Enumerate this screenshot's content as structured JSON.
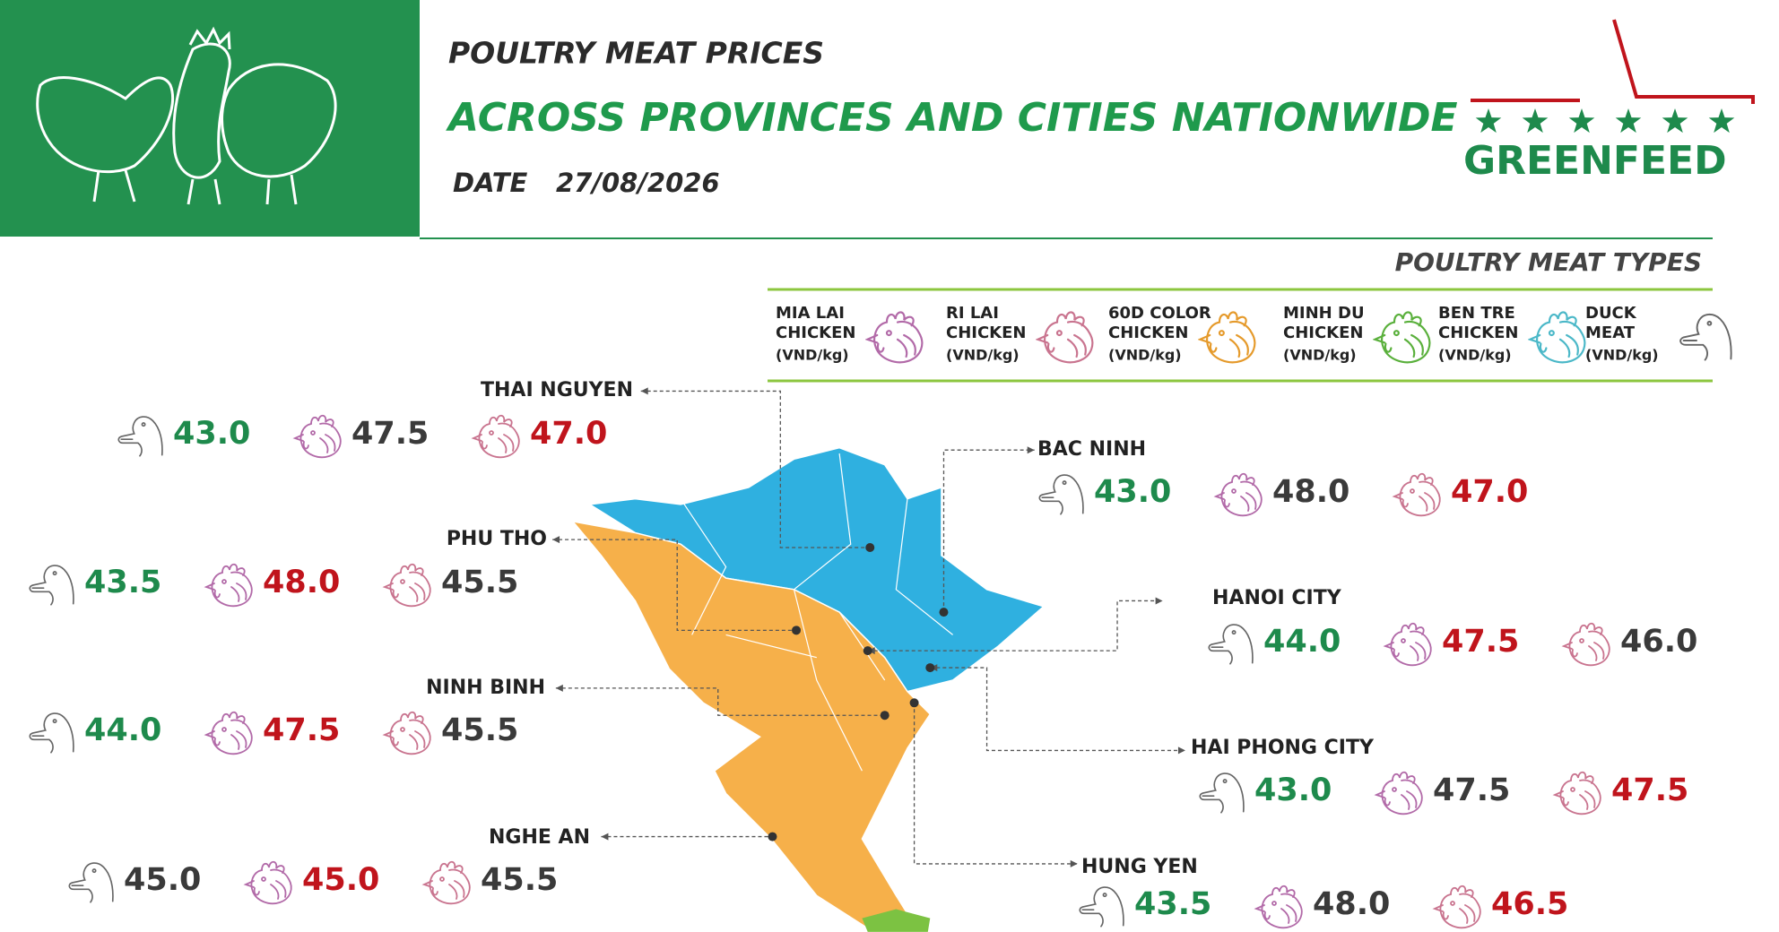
{
  "header": {
    "title": "POULTRY MEAT PRICES",
    "subtitle": "ACROSS PROVINCES AND CITIES NATIONWIDE",
    "date_label": "DATE",
    "date": "27/08/2026",
    "brand": "GREENFEED"
  },
  "legend": {
    "title": "POULTRY MEAT TYPES",
    "items": [
      {
        "type": "mia_lai",
        "color": "#b26aa8",
        "name_lines": [
          "MIA LAI",
          "CHICKEN"
        ],
        "unit": "(VND/kg)"
      },
      {
        "type": "ri_lai",
        "color": "#c9748f",
        "name_lines": [
          "RI LAI",
          "CHICKEN"
        ],
        "unit": "(VND/kg)"
      },
      {
        "type": "60d_color",
        "color": "#e59a2b",
        "name_lines": [
          "60D COLOR",
          "CHICKEN"
        ],
        "unit": "(VND/kg)"
      },
      {
        "type": "minh_du",
        "color": "#5ab03c",
        "name_lines": [
          "MINH DU",
          "CHICKEN"
        ],
        "unit": "(VND/kg)"
      },
      {
        "type": "ben_tre",
        "color": "#4bb8c8",
        "name_lines": [
          "BEN TRE",
          "CHICKEN"
        ],
        "unit": "(VND/kg)"
      },
      {
        "type": "duck",
        "color": "#666666",
        "name_lines": [
          "DUCK",
          "MEAT"
        ],
        "unit": "(VND/kg)"
      }
    ]
  },
  "provinces": [
    {
      "name": "THAI NGUYEN",
      "prices": [
        {
          "type": "duck",
          "price": "43.0",
          "color": "#1e8a4c"
        },
        {
          "type": "mia_lai",
          "price": "47.5",
          "color": "#3a3a3a"
        },
        {
          "type": "ri_lai",
          "price": "47.0",
          "color": "#c0141c"
        }
      ]
    },
    {
      "name": "PHU THO",
      "prices": [
        {
          "type": "duck",
          "price": "43.5",
          "color": "#1e8a4c"
        },
        {
          "type": "mia_lai",
          "price": "48.0",
          "color": "#c0141c"
        },
        {
          "type": "ri_lai",
          "price": "45.5",
          "color": "#3a3a3a"
        }
      ]
    },
    {
      "name": "NINH BINH",
      "prices": [
        {
          "type": "duck",
          "price": "44.0",
          "color": "#1e8a4c"
        },
        {
          "type": "mia_lai",
          "price": "47.5",
          "color": "#c0141c"
        },
        {
          "type": "ri_lai",
          "price": "45.5",
          "color": "#3a3a3a"
        }
      ]
    },
    {
      "name": "NGHE AN",
      "prices": [
        {
          "type": "duck",
          "price": "45.0",
          "color": "#3a3a3a"
        },
        {
          "type": "mia_lai",
          "price": "45.0",
          "color": "#c0141c"
        },
        {
          "type": "ri_lai",
          "price": "45.5",
          "color": "#3a3a3a"
        }
      ]
    },
    {
      "name": "BAC NINH",
      "prices": [
        {
          "type": "duck",
          "price": "43.0",
          "color": "#1e8a4c"
        },
        {
          "type": "mia_lai",
          "price": "48.0",
          "color": "#3a3a3a"
        },
        {
          "type": "ri_lai",
          "price": "47.0",
          "color": "#c0141c"
        }
      ]
    },
    {
      "name": "HANOI CITY",
      "prices": [
        {
          "type": "duck",
          "price": "44.0",
          "color": "#1e8a4c"
        },
        {
          "type": "mia_lai",
          "price": "47.5",
          "color": "#c0141c"
        },
        {
          "type": "ri_lai",
          "price": "46.0",
          "color": "#3a3a3a"
        }
      ]
    },
    {
      "name": "HAI PHONG CITY",
      "prices": [
        {
          "type": "duck",
          "price": "43.0",
          "color": "#1e8a4c"
        },
        {
          "type": "mia_lai",
          "price": "47.5",
          "color": "#3a3a3a"
        },
        {
          "type": "ri_lai",
          "price": "47.5",
          "color": "#c0141c"
        }
      ]
    },
    {
      "name": "HUNG YEN",
      "prices": [
        {
          "type": "duck",
          "price": "43.5",
          "color": "#1e8a4c"
        },
        {
          "type": "mia_lai",
          "price": "48.0",
          "color": "#3a3a3a"
        },
        {
          "type": "ri_lai",
          "price": "46.5",
          "color": "#c0141c"
        }
      ]
    }
  ]
}
